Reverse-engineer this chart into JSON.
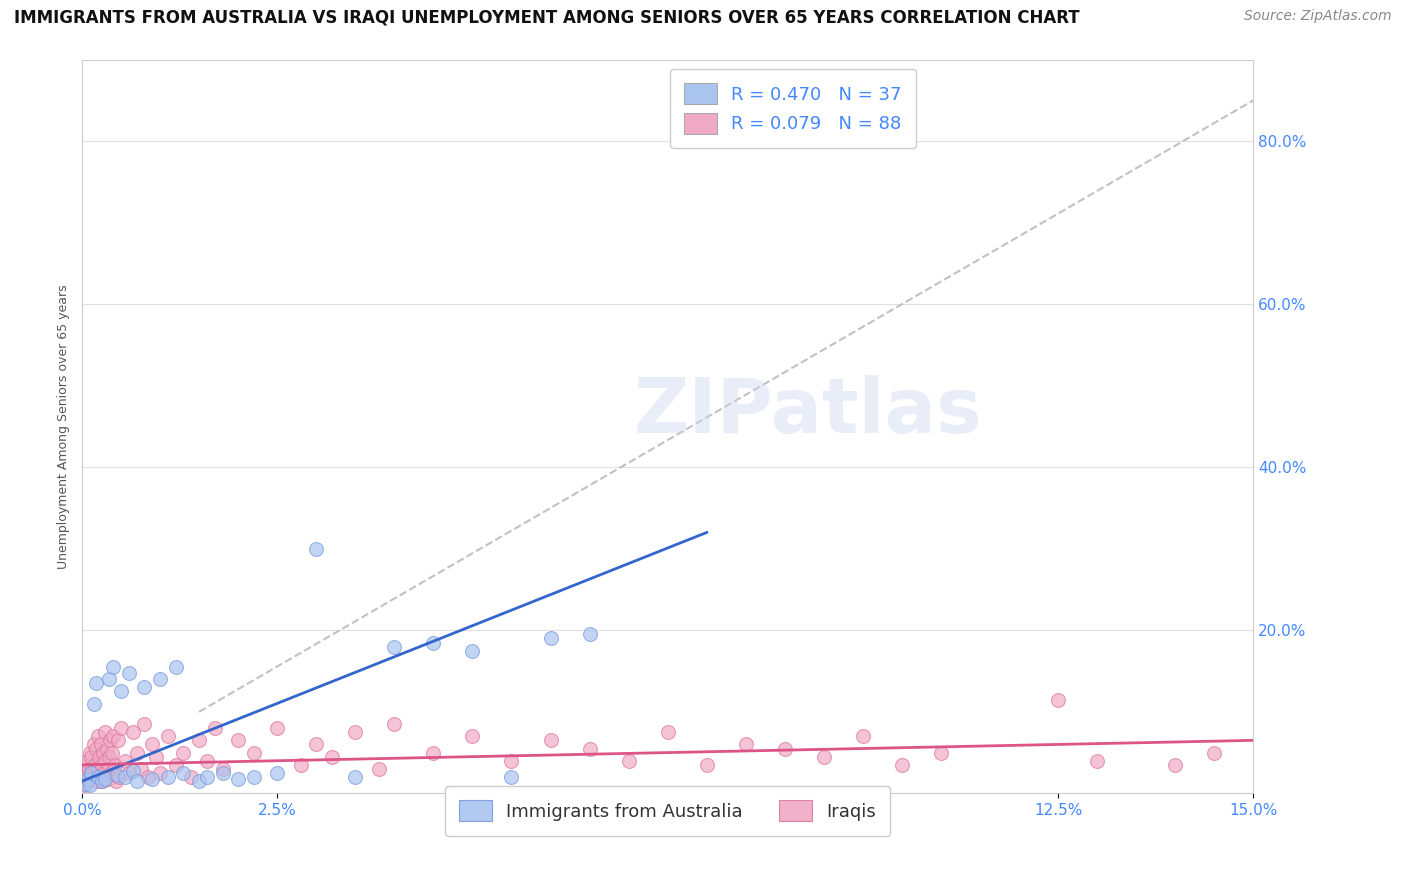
{
  "title": "IMMIGRANTS FROM AUSTRALIA VS IRAQI UNEMPLOYMENT AMONG SENIORS OVER 65 YEARS CORRELATION CHART",
  "source": "Source: ZipAtlas.com",
  "ylabel": "Unemployment Among Seniors over 65 years",
  "legend_entries": [
    {
      "label_left": "R = ",
      "label_val1": "0.470",
      "label_mid": "  N = ",
      "label_val2": "37",
      "color": "#aac4f0"
    },
    {
      "label_left": "R = ",
      "label_val1": "0.079",
      "label_mid": "  N = ",
      "label_val2": "88",
      "color": "#f0aac4"
    }
  ],
  "legend_bottom": [
    {
      "label": "Immigrants from Australia",
      "color": "#aac4f0"
    },
    {
      "label": "Iraqis",
      "color": "#f0aac4"
    }
  ],
  "xmin": 0.0,
  "xmax": 15.0,
  "ymin": 0.0,
  "ymax": 90.0,
  "yticks": [
    0,
    20,
    40,
    60,
    80
  ],
  "ytick_labels": [
    "",
    "20.0%",
    "40.0%",
    "60.0%",
    "80.0%"
  ],
  "xticks": [
    0.0,
    2.5,
    5.0,
    7.5,
    10.0,
    12.5,
    15.0
  ],
  "xtick_labels": [
    "0.0%",
    "2.5%",
    "5.0%",
    "7.5%",
    "10.0%",
    "12.5%",
    "15.0%"
  ],
  "watermark": "ZIPatlas",
  "blue_scatter": [
    [
      0.05,
      1.2
    ],
    [
      0.08,
      1.8
    ],
    [
      0.1,
      1.0
    ],
    [
      0.12,
      2.5
    ],
    [
      0.15,
      11.0
    ],
    [
      0.18,
      13.5
    ],
    [
      0.2,
      2.0
    ],
    [
      0.25,
      1.5
    ],
    [
      0.3,
      1.8
    ],
    [
      0.35,
      14.0
    ],
    [
      0.4,
      15.5
    ],
    [
      0.45,
      2.2
    ],
    [
      0.5,
      12.5
    ],
    [
      0.55,
      2.0
    ],
    [
      0.6,
      14.8
    ],
    [
      0.65,
      2.8
    ],
    [
      0.7,
      1.5
    ],
    [
      0.8,
      13.0
    ],
    [
      0.9,
      1.8
    ],
    [
      1.0,
      14.0
    ],
    [
      1.1,
      2.0
    ],
    [
      1.2,
      15.5
    ],
    [
      1.3,
      2.5
    ],
    [
      1.5,
      1.5
    ],
    [
      1.6,
      2.0
    ],
    [
      1.8,
      2.5
    ],
    [
      2.0,
      1.8
    ],
    [
      2.2,
      2.0
    ],
    [
      2.5,
      2.5
    ],
    [
      3.0,
      30.0
    ],
    [
      3.5,
      2.0
    ],
    [
      4.0,
      18.0
    ],
    [
      4.5,
      18.5
    ],
    [
      5.0,
      17.5
    ],
    [
      5.5,
      2.0
    ],
    [
      6.0,
      19.0
    ],
    [
      6.5,
      19.5
    ]
  ],
  "pink_scatter": [
    [
      0.02,
      1.5
    ],
    [
      0.03,
      2.5
    ],
    [
      0.04,
      1.0
    ],
    [
      0.05,
      3.5
    ],
    [
      0.06,
      2.0
    ],
    [
      0.07,
      4.0
    ],
    [
      0.08,
      1.5
    ],
    [
      0.09,
      3.0
    ],
    [
      0.1,
      5.0
    ],
    [
      0.11,
      2.0
    ],
    [
      0.12,
      4.5
    ],
    [
      0.13,
      3.0
    ],
    [
      0.14,
      1.8
    ],
    [
      0.15,
      6.0
    ],
    [
      0.16,
      2.5
    ],
    [
      0.17,
      3.5
    ],
    [
      0.18,
      5.5
    ],
    [
      0.19,
      1.5
    ],
    [
      0.2,
      7.0
    ],
    [
      0.21,
      3.0
    ],
    [
      0.22,
      4.5
    ],
    [
      0.23,
      2.0
    ],
    [
      0.24,
      6.0
    ],
    [
      0.25,
      3.5
    ],
    [
      0.26,
      1.5
    ],
    [
      0.27,
      5.0
    ],
    [
      0.28,
      2.5
    ],
    [
      0.29,
      4.0
    ],
    [
      0.3,
      7.5
    ],
    [
      0.31,
      2.0
    ],
    [
      0.32,
      5.5
    ],
    [
      0.33,
      1.8
    ],
    [
      0.34,
      4.5
    ],
    [
      0.35,
      3.0
    ],
    [
      0.36,
      6.5
    ],
    [
      0.37,
      2.5
    ],
    [
      0.38,
      5.0
    ],
    [
      0.4,
      7.0
    ],
    [
      0.42,
      3.5
    ],
    [
      0.44,
      1.5
    ],
    [
      0.46,
      6.5
    ],
    [
      0.48,
      2.0
    ],
    [
      0.5,
      8.0
    ],
    [
      0.55,
      4.0
    ],
    [
      0.6,
      2.5
    ],
    [
      0.65,
      7.5
    ],
    [
      0.7,
      5.0
    ],
    [
      0.75,
      3.0
    ],
    [
      0.8,
      8.5
    ],
    [
      0.85,
      2.0
    ],
    [
      0.9,
      6.0
    ],
    [
      0.95,
      4.5
    ],
    [
      1.0,
      2.5
    ],
    [
      1.1,
      7.0
    ],
    [
      1.2,
      3.5
    ],
    [
      1.3,
      5.0
    ],
    [
      1.4,
      2.0
    ],
    [
      1.5,
      6.5
    ],
    [
      1.6,
      4.0
    ],
    [
      1.7,
      8.0
    ],
    [
      1.8,
      3.0
    ],
    [
      2.0,
      6.5
    ],
    [
      2.2,
      5.0
    ],
    [
      2.5,
      8.0
    ],
    [
      2.8,
      3.5
    ],
    [
      3.0,
      6.0
    ],
    [
      3.2,
      4.5
    ],
    [
      3.5,
      7.5
    ],
    [
      3.8,
      3.0
    ],
    [
      4.0,
      8.5
    ],
    [
      4.5,
      5.0
    ],
    [
      5.0,
      7.0
    ],
    [
      5.5,
      4.0
    ],
    [
      6.0,
      6.5
    ],
    [
      6.5,
      5.5
    ],
    [
      7.0,
      4.0
    ],
    [
      7.5,
      7.5
    ],
    [
      8.0,
      3.5
    ],
    [
      8.5,
      6.0
    ],
    [
      9.0,
      5.5
    ],
    [
      9.5,
      4.5
    ],
    [
      10.0,
      7.0
    ],
    [
      10.5,
      3.5
    ],
    [
      11.0,
      5.0
    ],
    [
      12.5,
      11.5
    ],
    [
      13.0,
      4.0
    ],
    [
      14.0,
      3.5
    ],
    [
      14.5,
      5.0
    ]
  ],
  "blue_line_x": [
    0.0,
    8.0
  ],
  "blue_line_y": [
    1.5,
    32.0
  ],
  "pink_line_x": [
    0.0,
    15.0
  ],
  "pink_line_y": [
    3.5,
    6.5
  ],
  "dashed_line_x": [
    1.5,
    15.0
  ],
  "dashed_line_y": [
    10.0,
    85.0
  ],
  "title_fontsize": 12,
  "source_fontsize": 10,
  "axis_label_fontsize": 9,
  "tick_fontsize": 11,
  "legend_fontsize": 13,
  "watermark_fontsize": 55,
  "scatter_size": 100,
  "blue_color": "#aac4f0",
  "blue_edge_color": "#7799dd",
  "pink_color": "#f0aac4",
  "pink_edge_color": "#dd7799",
  "blue_line_color": "#3366cc",
  "pink_line_color": "#dd5588",
  "dashed_line_color": "#bbbbbb",
  "background_color": "#ffffff",
  "grid_color": "#dddddd",
  "title_color": "#111111",
  "tick_color": "#4488ff",
  "legend_text_color": "#111111",
  "legend_val_color": "#4488ff"
}
